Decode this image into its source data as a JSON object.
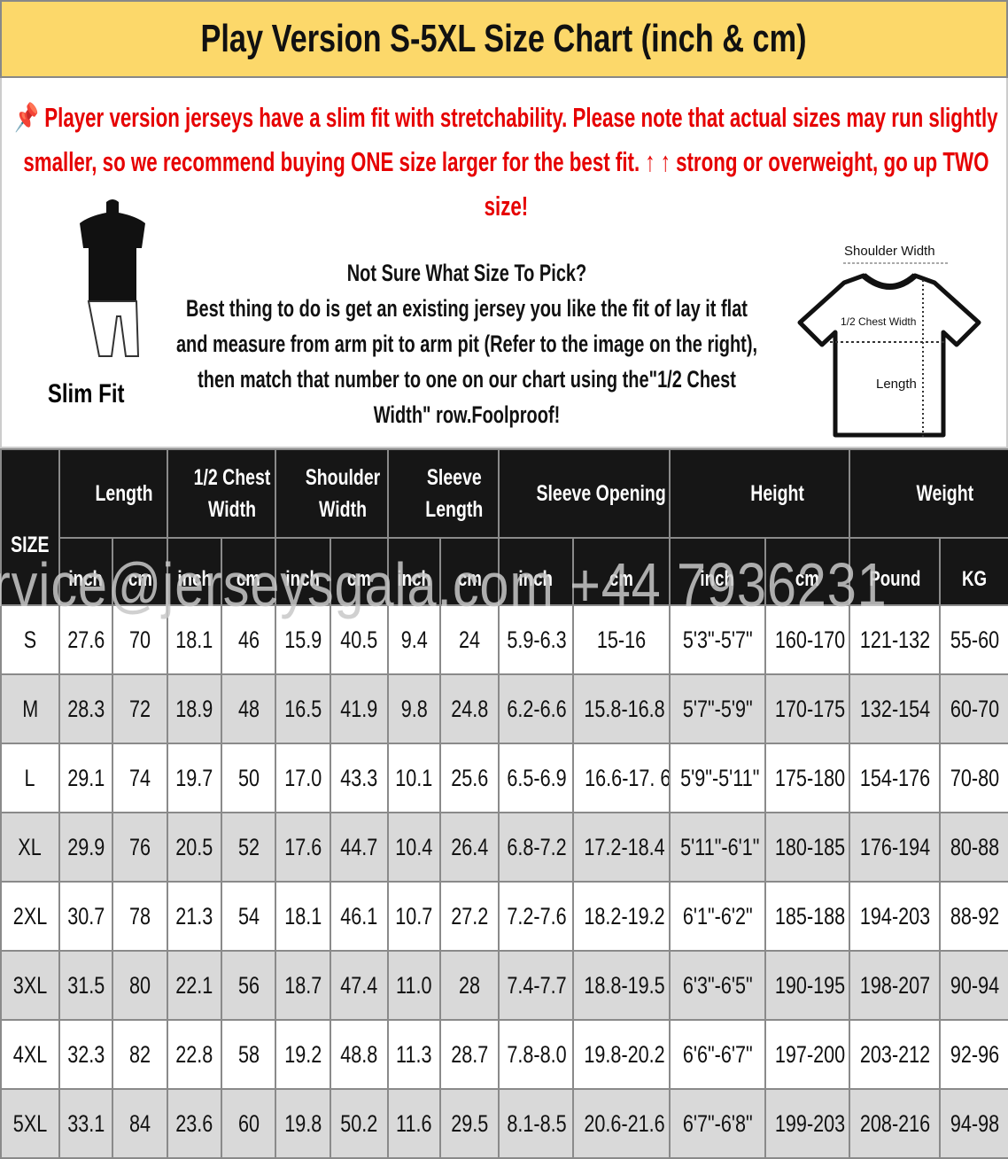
{
  "title": "Play Version S-5XL Size Chart (inch & cm)",
  "notice": "Player version jerseys have a slim fit with stretchability. Please note that actual sizes may run slightly smaller, so we recommend buying ONE size larger for the best fit. ↑ ↑ strong or overweight, go up TWO size!",
  "notice_icon": "pushpin-icon",
  "slim_fit_label": "Slim Fit",
  "guide": {
    "heading": "Not Sure What Size To Pick?",
    "body": "Best thing to do is get an existing jersey you like the fit of lay it flat and measure from arm pit to arm pit (Refer to the image on the right), then match that number to one on our chart using the\"1/2 Chest Width\" row.Foolproof!"
  },
  "shirt_diagram": {
    "shoulder": "Shoulder Width",
    "chest": "1/2 Chest Width",
    "length": "Length"
  },
  "table": {
    "size_header": "SIZE",
    "groups": [
      "Length",
      "1/2 Chest Width",
      "Shoulder Width",
      "Sleeve Length",
      "Sleeve Opening",
      "Height",
      "Weight"
    ],
    "units": [
      "inch",
      "cm",
      "inch",
      "cm",
      "inch",
      "cm",
      "inch",
      "cm",
      "inch",
      "cm",
      "inch",
      "cm",
      "Pound",
      "KG"
    ],
    "rows": [
      [
        "S",
        "27.6",
        "70",
        "18.1",
        "46",
        "15.9",
        "40.5",
        "9.4",
        "24",
        "5.9-6.3",
        "15-16",
        "5'3\"-5'7\"",
        "160-170",
        "121-132",
        "55-60"
      ],
      [
        "M",
        "28.3",
        "72",
        "18.9",
        "48",
        "16.5",
        "41.9",
        "9.8",
        "24.8",
        "6.2-6.6",
        "15.8-16.8",
        "5'7\"-5'9\"",
        "170-175",
        "132-154",
        "60-70"
      ],
      [
        "L",
        "29.1",
        "74",
        "19.7",
        "50",
        "17.0",
        "43.3",
        "10.1",
        "25.6",
        "6.5-6.9",
        "16.6-17. 6",
        "5'9\"-5'11\"",
        "175-180",
        "154-176",
        "70-80"
      ],
      [
        "XL",
        "29.9",
        "76",
        "20.5",
        "52",
        "17.6",
        "44.7",
        "10.4",
        "26.4",
        "6.8-7.2",
        "17.2-18.4",
        "5'11\"-6'1\"",
        "180-185",
        "176-194",
        "80-88"
      ],
      [
        "2XL",
        "30.7",
        "78",
        "21.3",
        "54",
        "18.1",
        "46.1",
        "10.7",
        "27.2",
        "7.2-7.6",
        "18.2-19.2",
        "6'1\"-6'2\"",
        "185-188",
        "194-203",
        "88-92"
      ],
      [
        "3XL",
        "31.5",
        "80",
        "22.1",
        "56",
        "18.7",
        "47.4",
        "11.0",
        "28",
        "7.4-7.7",
        "18.8-19.5",
        "6'3\"-6'5\"",
        "190-195",
        "198-207",
        "90-94"
      ],
      [
        "4XL",
        "32.3",
        "82",
        "22.8",
        "58",
        "19.2",
        "48.8",
        "11.3",
        "28.7",
        "7.8-8.0",
        "19.8-20.2",
        "6'6\"-6'7\"",
        "197-200",
        "203-212",
        "92-96"
      ],
      [
        "5XL",
        "33.1",
        "84",
        "23.6",
        "60",
        "19.8",
        "50.2",
        "11.6",
        "29.5",
        "8.1-8.5",
        "20.6-21.6",
        "6'7\"-6'8\"",
        "199-203",
        "208-216",
        "94-98"
      ]
    ]
  },
  "watermark": "rvice@jerseysgala.com  +44 7936231",
  "colors": {
    "title_bg": "#fcd86a",
    "notice": "#e60000",
    "header_bg": "#161616",
    "alt_row": "#d9d9d9"
  }
}
